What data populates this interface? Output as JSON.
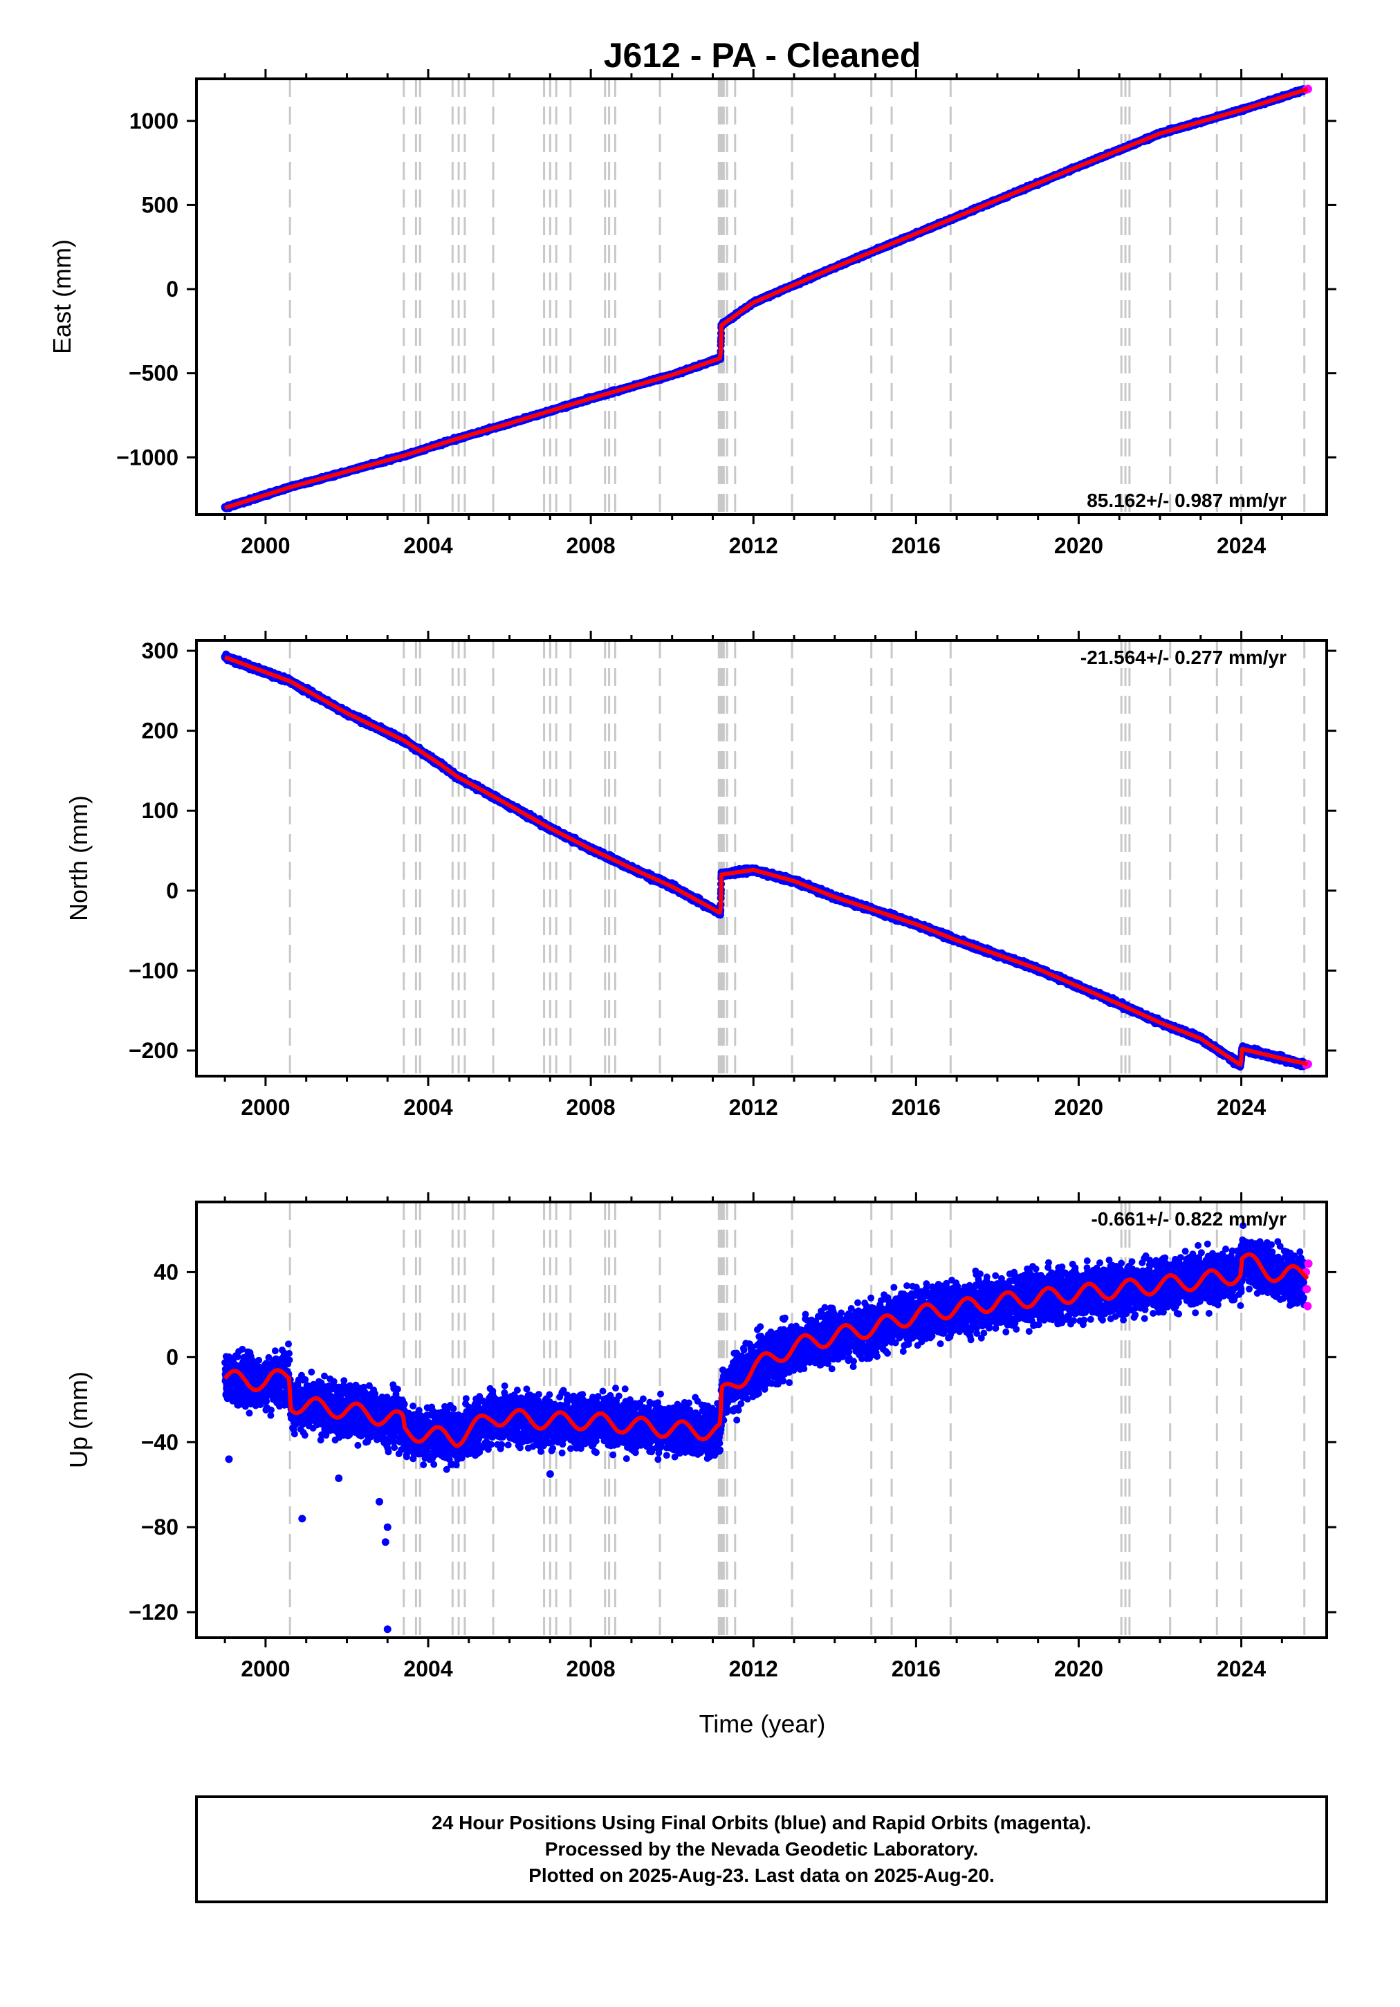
{
  "figure_title": "J612  - PA - Cleaned",
  "colors": {
    "data": "#0000ff",
    "rapid": "#ff00ff",
    "model": "#ff0000",
    "steps": "#c8c8c8"
  },
  "chart_data": [
    {
      "type": "scatter",
      "panel": "east",
      "title": "J612  - PA - Cleaned",
      "xlabel": "",
      "ylabel": "East (mm)",
      "xlim": [
        1998.3,
        2026.1
      ],
      "ylim": [
        -1340,
        1250
      ],
      "xticks": [
        2000,
        2004,
        2008,
        2012,
        2016,
        2020,
        2024
      ],
      "yticks": [
        -1000,
        -500,
        0,
        500,
        1000
      ],
      "ytick_labels": [
        "−1000",
        "−500",
        "0",
        "500",
        "1000"
      ],
      "rate_text": "85.162+/- 0.987 mm/yr",
      "rate_position": "bottom-right",
      "series": [
        {
          "role": "final-orbits",
          "color": "blue",
          "x": [
            1999.0,
            2000.6,
            2003.4,
            2004.7,
            2006.0,
            2008.0,
            2010.0,
            2011.19,
            2011.21,
            2012.0,
            2014.0,
            2016.0,
            2018.0,
            2020.0,
            2022.0,
            2024.0,
            2025.55
          ],
          "y": [
            -1300,
            -1178,
            -990,
            -890,
            -798,
            -650,
            -510,
            -410,
            -215,
            -80,
            130,
            330,
            530,
            730,
            925,
            1065,
            1185
          ]
        },
        {
          "role": "rapid-orbits",
          "color": "magenta",
          "x": [
            2025.6,
            2025.64
          ],
          "y": [
            1186,
            1190
          ]
        },
        {
          "role": "model",
          "color": "red",
          "x": [
            1999.0,
            2000.6,
            2003.4,
            2004.7,
            2006.0,
            2008.0,
            2010.0,
            2011.19,
            2011.21,
            2012.0,
            2014.0,
            2016.0,
            2018.0,
            2020.0,
            2022.0,
            2024.0,
            2025.64
          ],
          "y": [
            -1300,
            -1178,
            -990,
            -890,
            -798,
            -650,
            -510,
            -410,
            -215,
            -80,
            130,
            330,
            530,
            730,
            925,
            1065,
            1190
          ]
        }
      ]
    },
    {
      "type": "scatter",
      "panel": "north",
      "xlabel": "",
      "ylabel": "North (mm)",
      "xlim": [
        1998.3,
        2026.1
      ],
      "ylim": [
        -232,
        313
      ],
      "xticks": [
        2000,
        2004,
        2008,
        2012,
        2016,
        2020,
        2024
      ],
      "yticks": [
        -200,
        -100,
        0,
        100,
        200,
        300
      ],
      "ytick_labels": [
        "−200",
        "−100",
        "0",
        "100",
        "200",
        "300"
      ],
      "rate_text": "-21.564+/- 0.277 mm/yr",
      "rate_position": "top-right",
      "series": [
        {
          "role": "final-orbits",
          "color": "blue",
          "x": [
            1999.0,
            2000.6,
            2002.0,
            2003.4,
            2004.3,
            2004.7,
            2005.6,
            2007.0,
            2008.0,
            2009.0,
            2010.0,
            2011.19,
            2011.21,
            2012.0,
            2013.0,
            2014.0,
            2015.0,
            2016.0,
            2017.0,
            2018.0,
            2019.0,
            2020.0,
            2021.0,
            2022.0,
            2023.0,
            2023.98,
            2024.02,
            2025.0,
            2025.55
          ],
          "y": [
            292,
            262,
            222,
            188,
            158,
            143,
            118,
            78,
            52,
            28,
            5,
            -28,
            20,
            26,
            12,
            -8,
            -25,
            -42,
            -62,
            -80,
            -98,
            -120,
            -142,
            -165,
            -185,
            -218,
            -198,
            -210,
            -218
          ]
        },
        {
          "role": "rapid-orbits",
          "color": "magenta",
          "x": [
            2025.6,
            2025.64
          ],
          "y": [
            -218,
            -217
          ]
        },
        {
          "role": "model",
          "color": "red",
          "x": [
            1999.0,
            2000.6,
            2002.0,
            2003.4,
            2004.3,
            2004.7,
            2005.6,
            2007.0,
            2008.0,
            2009.0,
            2010.0,
            2011.19,
            2011.21,
            2012.0,
            2013.0,
            2014.0,
            2015.0,
            2016.0,
            2017.0,
            2018.0,
            2019.0,
            2020.0,
            2021.0,
            2022.0,
            2023.0,
            2023.98,
            2024.02,
            2025.0,
            2025.64
          ],
          "y": [
            292,
            262,
            222,
            188,
            158,
            143,
            118,
            78,
            52,
            28,
            5,
            -28,
            20,
            26,
            12,
            -8,
            -25,
            -42,
            -62,
            -80,
            -98,
            -120,
            -142,
            -165,
            -185,
            -218,
            -198,
            -210,
            -217
          ]
        }
      ]
    },
    {
      "type": "scatter",
      "panel": "up",
      "xlabel": "Time (year)",
      "ylabel": "Up (mm)",
      "xlim": [
        1998.3,
        2026.1
      ],
      "ylim": [
        -132,
        73
      ],
      "xticks": [
        2000,
        2004,
        2008,
        2012,
        2016,
        2020,
        2024
      ],
      "yticks": [
        -120,
        -80,
        -40,
        0,
        40
      ],
      "ytick_labels": [
        "−120",
        "−80",
        "−40",
        "0",
        "40"
      ],
      "rate_text": "-0.661+/- 0.822 mm/yr",
      "rate_position": "top-right",
      "series": [
        {
          "role": "final-orbits",
          "color": "blue",
          "x": [
            1999.0,
            2000.0,
            2000.58,
            2000.62,
            2002.0,
            2003.38,
            2003.42,
            2004.7,
            2005.6,
            2007.0,
            2008.0,
            2010.0,
            2011.18,
            2011.22,
            2012.0,
            2013.0,
            2014.0,
            2015.0,
            2016.0,
            2017.0,
            2018.0,
            2019.0,
            2020.0,
            2021.0,
            2022.0,
            2023.0,
            2023.98,
            2024.02,
            2025.0,
            2025.55
          ],
          "y": [
            -10,
            -12,
            -8,
            -22,
            -25,
            -30,
            -35,
            -38,
            -28,
            -30,
            -30,
            -34,
            -35,
            -18,
            -5,
            5,
            10,
            14,
            20,
            23,
            26,
            28,
            30,
            32,
            34,
            36,
            39,
            46,
            38,
            36
          ]
        },
        {
          "role": "outliers",
          "color": "blue",
          "x": [
            1999.1,
            2000.9,
            2001.8,
            2002.8,
            2002.95,
            2003.0,
            2003.0,
            2007.0
          ],
          "y": [
            -48,
            -76,
            -57,
            -68,
            -87,
            -80,
            -128,
            -55
          ]
        },
        {
          "role": "rapid-orbits",
          "color": "magenta",
          "x": [
            2025.59,
            2025.61,
            2025.63,
            2025.65
          ],
          "y": [
            40,
            32,
            24,
            44
          ]
        },
        {
          "role": "model",
          "color": "red",
          "x": [
            1999.0,
            2000.0,
            2000.58,
            2000.62,
            2002.0,
            2003.38,
            2003.42,
            2004.7,
            2005.6,
            2007.0,
            2008.0,
            2010.0,
            2011.18,
            2011.22,
            2012.0,
            2013.0,
            2014.0,
            2015.0,
            2016.0,
            2017.0,
            2018.0,
            2019.0,
            2020.0,
            2021.0,
            2022.0,
            2023.0,
            2023.98,
            2024.02,
            2025.0,
            2025.64
          ],
          "y": [
            -10,
            -12,
            -8,
            -22,
            -25,
            -30,
            -35,
            -38,
            -28,
            -30,
            -30,
            -34,
            -35,
            -18,
            -5,
            5,
            10,
            14,
            20,
            23,
            26,
            28,
            30,
            32,
            34,
            36,
            39,
            46,
            38,
            40
          ]
        }
      ]
    }
  ],
  "step_epochs": [
    2000.6,
    2003.4,
    2003.7,
    2003.8,
    2004.6,
    2004.75,
    2004.9,
    2005.6,
    2006.85,
    2007.0,
    2007.15,
    2007.5,
    2008.35,
    2008.45,
    2008.6,
    2009.7,
    2011.15,
    2011.19,
    2011.23,
    2011.27,
    2011.35,
    2011.55,
    2012.95,
    2014.9,
    2015.4,
    2016.85,
    2021.05,
    2021.15,
    2021.25,
    2022.25,
    2023.4,
    2024.0,
    2025.55
  ],
  "caption": {
    "line1": "24 Hour Positions Using Final Orbits (blue) and Rapid Orbits (magenta).",
    "line2": "Processed by the Nevada Geodetic Laboratory.",
    "line3": "Plotted on 2025-Aug-23. Last data on 2025-Aug-20."
  }
}
